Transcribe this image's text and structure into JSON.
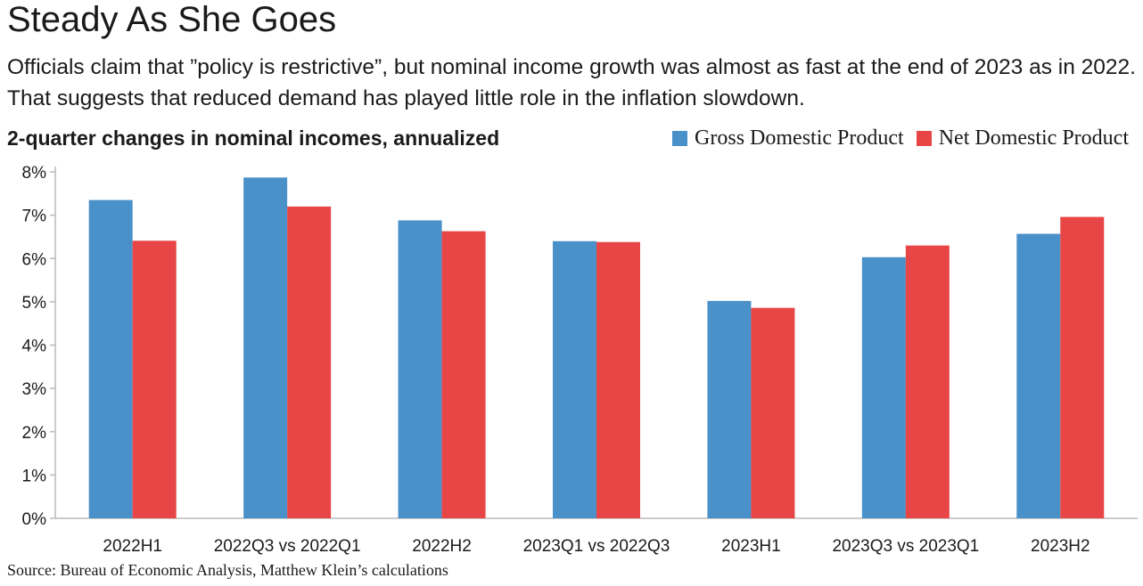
{
  "title": "Steady As She Goes",
  "subtitle": "Officials claim that ”policy is restrictive”, but nominal income growth was almost as fast at the end of 2023 as in 2022. That suggests that reduced demand has played little role in the inflation slowdown.",
  "chart_label": "2-quarter changes in nominal incomes, annualized",
  "source": "Source: Bureau of Economic Analysis, Matthew Klein’s calculations",
  "colors": {
    "gdp": "#4a90c9",
    "ndp": "#e84646",
    "axis": "#bbbbbb"
  },
  "chart_data": {
    "type": "bar",
    "title": "",
    "xlabel": "",
    "ylabel": "",
    "categories": [
      "2022H1",
      "2022Q3 vs 2022Q1",
      "2022H2",
      "2023Q1 vs 2022Q3",
      "2023H1",
      "2023Q3 vs 2023Q1",
      "2023H2"
    ],
    "series": [
      {
        "name": "Gross Domestic Product",
        "values": [
          7.35,
          7.87,
          6.88,
          6.4,
          5.02,
          6.03,
          6.57
        ]
      },
      {
        "name": "Net Domestic Product",
        "values": [
          6.41,
          7.2,
          6.63,
          6.38,
          4.86,
          6.3,
          6.96
        ]
      }
    ],
    "ylim": [
      0,
      8
    ],
    "yticks": [
      0,
      1,
      2,
      3,
      4,
      5,
      6,
      7,
      8
    ],
    "ytick_labels": [
      "0%",
      "1%",
      "2%",
      "3%",
      "4%",
      "5%",
      "6%",
      "7%",
      "8%"
    ],
    "grid": false,
    "legend": "top-right"
  }
}
